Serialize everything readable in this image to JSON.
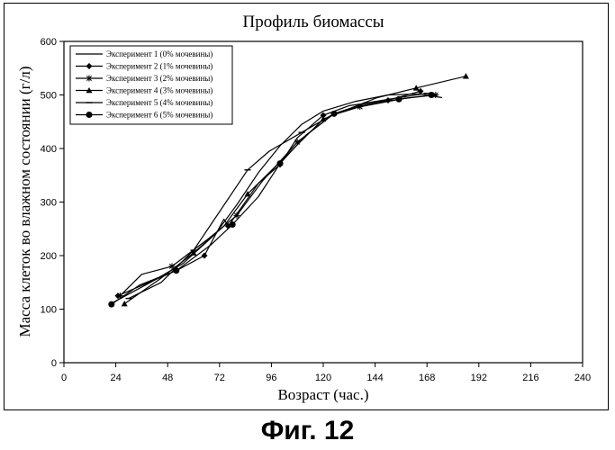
{
  "chart_data": {
    "type": "line",
    "title": "Профиль биомассы",
    "xlabel": "Возраст (час.)",
    "ylabel": "Масса клеток во влажном состоянии (г/л)",
    "xlim": [
      0,
      240
    ],
    "ylim": [
      0,
      600
    ],
    "xticks": [
      0,
      24,
      48,
      72,
      96,
      120,
      144,
      168,
      192,
      216,
      240
    ],
    "yticks": [
      0,
      100,
      200,
      300,
      400,
      500,
      600
    ],
    "grid": false,
    "legend_position": "top-left",
    "series": [
      {
        "name": "Эксперимент 1 (0% мочевины)",
        "marker": "none",
        "x": [
          23,
          40,
          55,
          70,
          80,
          90,
          100,
          110,
          120,
          135,
          150,
          165,
          175
        ],
        "y": [
          113,
          150,
          185,
          240,
          295,
          355,
          405,
          445,
          470,
          488,
          500,
          502,
          495
        ]
      },
      {
        "name": "Эксперимент 2 (1% мочевины)",
        "marker": "diamond",
        "x": [
          25,
          52,
          65,
          74,
          76,
          90,
          100,
          108,
          120,
          132,
          150,
          165
        ],
        "y": [
          125,
          172,
          200,
          268,
          255,
          335,
          370,
          420,
          462,
          480,
          490,
          507
        ]
      },
      {
        "name": "Эксперимент 3 (2% мочевины)",
        "marker": "star",
        "x": [
          26,
          36,
          50,
          67,
          80,
          92,
          108,
          124,
          137,
          158,
          172
        ],
        "y": [
          125,
          165,
          180,
          232,
          275,
          340,
          412,
          462,
          478,
          494,
          500
        ]
      },
      {
        "name": "Эксперимент 4 (3% мочевины)",
        "marker": "triangle",
        "x": [
          28,
          45,
          60,
          74,
          85,
          100,
          120,
          145,
          163,
          186
        ],
        "y": [
          110,
          158,
          205,
          255,
          315,
          375,
          455,
          495,
          513,
          535
        ]
      },
      {
        "name": "Эксперимент 5 (4% мочевины)",
        "marker": "dash",
        "x": [
          30,
          45,
          60,
          75,
          85,
          95,
          110,
          125,
          140,
          155,
          168
        ],
        "y": [
          120,
          150,
          210,
          300,
          360,
          395,
          430,
          465,
          485,
          495,
          503
        ]
      },
      {
        "name": "Эксперимент 6 (5% мочевины)",
        "marker": "circle",
        "x": [
          22,
          35,
          52,
          68,
          78,
          90,
          100,
          112,
          125,
          140,
          155,
          170
        ],
        "y": [
          109,
          145,
          172,
          220,
          258,
          310,
          372,
          425,
          465,
          482,
          492,
          500
        ]
      }
    ]
  },
  "caption": "Фиг.  12"
}
